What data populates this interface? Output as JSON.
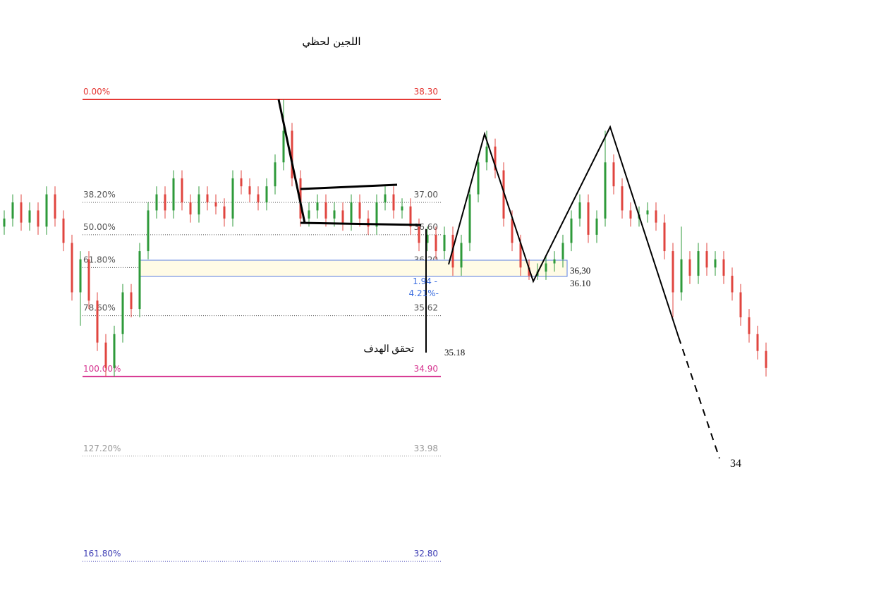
{
  "chart_data": {
    "type": "candlestick",
    "title": "اللجين لحظي",
    "log_scale": true,
    "ylim": [
      32.4,
      39.6
    ],
    "up_color": "#2e9a3a",
    "down_color": "#e0453f",
    "candles": {
      "open": [
        36.7,
        36.8,
        37.0,
        36.75,
        36.9,
        36.7,
        37.1,
        36.8,
        36.5,
        35.9,
        36.3,
        35.8,
        35.3,
        35.0,
        35.4,
        35.9,
        35.7,
        36.4,
        36.9,
        37.1,
        36.9,
        37.3,
        37.0,
        36.85,
        37.1,
        37.0,
        36.95,
        36.8,
        37.3,
        37.2,
        37.1,
        37.0,
        37.2,
        37.5,
        37.9,
        37.3,
        36.8,
        36.9,
        37.0,
        36.8,
        36.9,
        36.75,
        37.0,
        36.8,
        36.7,
        37.0,
        37.1,
        36.9,
        36.95,
        36.7,
        36.5,
        36.6,
        36.4,
        36.6,
        36.2,
        36.5,
        37.1,
        37.5,
        37.7,
        37.4,
        36.8,
        36.5,
        36.2,
        36.1,
        36.15,
        36.25,
        36.3,
        36.5,
        36.8,
        37.0,
        36.6,
        36.8,
        37.5,
        37.2,
        36.9,
        36.8,
        36.85,
        36.9,
        36.75,
        36.4,
        35.9,
        36.3,
        36.1,
        36.4,
        36.2,
        36.3,
        36.1,
        35.9,
        35.6,
        35.4,
        35.2
      ],
      "high": [
        36.9,
        37.1,
        37.1,
        37.0,
        37.0,
        37.2,
        37.2,
        36.9,
        36.6,
        36.4,
        36.4,
        35.9,
        35.4,
        35.5,
        36.0,
        36.0,
        36.5,
        37.0,
        37.2,
        37.2,
        37.4,
        37.4,
        37.1,
        37.2,
        37.2,
        37.1,
        37.05,
        37.4,
        37.4,
        37.3,
        37.2,
        37.3,
        37.6,
        38.3,
        38.0,
        37.4,
        37.0,
        37.1,
        37.1,
        37.0,
        37.0,
        37.1,
        37.1,
        36.9,
        37.1,
        37.2,
        37.2,
        37.05,
        37.05,
        36.8,
        36.7,
        36.7,
        36.7,
        36.7,
        36.6,
        37.2,
        37.6,
        37.9,
        37.8,
        37.5,
        36.9,
        36.6,
        36.3,
        36.25,
        36.35,
        36.4,
        36.6,
        36.9,
        37.1,
        37.1,
        36.9,
        37.9,
        37.6,
        37.3,
        37.0,
        36.95,
        37.0,
        37.0,
        36.85,
        36.5,
        36.7,
        36.4,
        36.5,
        36.5,
        36.4,
        36.4,
        36.2,
        36.0,
        35.7,
        35.5,
        35.3
      ],
      "low": [
        36.6,
        36.7,
        36.65,
        36.65,
        36.6,
        36.6,
        36.7,
        36.4,
        35.8,
        35.5,
        35.7,
        35.2,
        34.9,
        34.9,
        35.3,
        35.6,
        35.6,
        36.3,
        36.8,
        36.8,
        36.8,
        36.9,
        36.75,
        36.75,
        36.9,
        36.85,
        36.7,
        36.7,
        37.1,
        37.0,
        36.9,
        36.9,
        37.1,
        37.4,
        37.2,
        36.7,
        36.7,
        36.8,
        36.7,
        36.7,
        36.65,
        36.65,
        36.7,
        36.6,
        36.6,
        36.9,
        36.8,
        36.8,
        36.6,
        36.4,
        36.4,
        36.3,
        36.3,
        36.1,
        36.1,
        36.4,
        37.0,
        37.4,
        37.3,
        36.7,
        36.4,
        36.1,
        36.05,
        36.05,
        36.05,
        36.15,
        36.2,
        36.4,
        36.7,
        36.5,
        36.5,
        36.7,
        37.1,
        36.8,
        36.7,
        36.7,
        36.75,
        36.65,
        36.3,
        35.6,
        35.8,
        36.0,
        36.0,
        36.1,
        36.1,
        36.0,
        35.8,
        35.5,
        35.3,
        35.1,
        34.9
      ],
      "close": [
        36.8,
        37.0,
        36.75,
        36.9,
        36.7,
        37.1,
        36.8,
        36.5,
        35.9,
        36.3,
        35.8,
        35.3,
        35.0,
        35.4,
        35.9,
        35.7,
        36.4,
        36.9,
        37.1,
        36.9,
        37.3,
        37.0,
        36.85,
        37.1,
        37.0,
        36.95,
        36.8,
        37.3,
        37.2,
        37.1,
        37.0,
        37.2,
        37.5,
        37.9,
        37.3,
        36.8,
        36.9,
        37.0,
        36.8,
        36.9,
        36.75,
        37.0,
        36.8,
        36.7,
        37.0,
        37.1,
        36.9,
        36.95,
        36.7,
        36.5,
        36.6,
        36.4,
        36.6,
        36.2,
        36.5,
        37.1,
        37.5,
        37.7,
        37.4,
        36.8,
        36.5,
        36.2,
        36.1,
        36.15,
        36.25,
        36.3,
        36.5,
        36.8,
        37.0,
        36.6,
        36.8,
        37.5,
        37.2,
        36.9,
        36.8,
        36.85,
        36.9,
        36.75,
        36.4,
        35.9,
        36.3,
        36.1,
        36.4,
        36.2,
        36.3,
        36.1,
        35.9,
        35.6,
        35.4,
        35.2,
        35.0
      ]
    },
    "fib_levels": [
      {
        "ratio": "0.00%",
        "value": 38.3,
        "label": "38.30",
        "color": "#e53935",
        "solid": true
      },
      {
        "ratio": "38.20%",
        "value": 37.0,
        "label": "37.00",
        "color": "#555555",
        "solid": false
      },
      {
        "ratio": "50.00%",
        "value": 36.6,
        "label": "36.60",
        "color": "#555555",
        "solid": false
      },
      {
        "ratio": "61.80%",
        "value": 36.2,
        "label": "36.20",
        "color": "#555555",
        "solid": false
      },
      {
        "ratio": "78.60%",
        "value": 35.62,
        "label": "35.62",
        "color": "#555555",
        "solid": false
      },
      {
        "ratio": "100.00%",
        "value": 34.9,
        "label": "34.90",
        "color": "#d6338f",
        "solid": true
      },
      {
        "ratio": "127.20%",
        "value": 33.98,
        "label": "33.98",
        "color": "#999999",
        "solid": false
      },
      {
        "ratio": "161.80%",
        "value": 32.8,
        "label": "32.80",
        "color": "#3c3cb4",
        "solid": false
      }
    ],
    "annotations": {
      "target_reached": "تحقق الهدف",
      "target_price": "35.18",
      "zone_top": "36,30",
      "zone_bottom": "36.10",
      "final_target": "34",
      "change": "1.94 -",
      "change_pct": "4.21%-"
    }
  }
}
